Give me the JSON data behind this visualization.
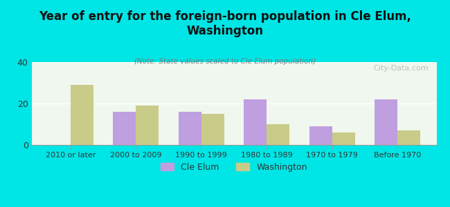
{
  "title": "Year of entry for the foreign-born population in Cle Elum,\nWashington",
  "subtitle": "(Note: State values scaled to Cle Elum population)",
  "categories": [
    "2010 or later",
    "2000 to 2009",
    "1990 to 1999",
    "1980 to 1989",
    "1970 to 1979",
    "Before 1970"
  ],
  "cle_elum_values": [
    0,
    16,
    16,
    22,
    9,
    22
  ],
  "washington_values": [
    29,
    19,
    15,
    10,
    6,
    7
  ],
  "cle_elum_color": "#bf9fdf",
  "washington_color": "#c8cc88",
  "background_color": "#00e5e5",
  "plot_bg_color_top": "#e8f5e8",
  "ylim": [
    0,
    40
  ],
  "yticks": [
    0,
    20,
    40
  ],
  "bar_width": 0.35,
  "watermark": "City-Data.com"
}
